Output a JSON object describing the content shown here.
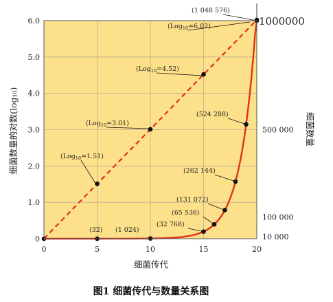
{
  "chart_data": {
    "type": "line",
    "title": "图1 细菌传代与数量关系图",
    "xlabel": "细菌传代",
    "ylabel_left": "细菌数量的对数(log₁₀)",
    "ylabel_right": "细菌数量",
    "xlim": [
      0,
      20
    ],
    "ylim_left": [
      0,
      6
    ],
    "ylim_right": [
      0,
      1000000
    ],
    "x_ticks": [
      "0",
      "5",
      "10",
      "15",
      "20"
    ],
    "y_ticks_left": [
      "0",
      "1.0",
      "2.0",
      "3.0",
      "4.0",
      "5.0",
      "6.0"
    ],
    "y_ticks_right": [
      {
        "value": 10000,
        "label": "10 000"
      },
      {
        "value": 100000,
        "label": "100 000"
      },
      {
        "value": 500000,
        "label": "500 000"
      },
      {
        "value": 1000000,
        "label": "1000000"
      }
    ],
    "grid": true,
    "series": [
      {
        "type": "line",
        "style": "dashed",
        "color": "#e0301e",
        "x": [
          0,
          5,
          10,
          15,
          20
        ],
        "y": [
          0,
          1.51,
          3.01,
          4.52,
          6.02
        ],
        "point_labels": [
          {
            "x": 5,
            "y": 1.51,
            "prefix": "(Log",
            "subscript": "10",
            "suffix": "=1.51)"
          },
          {
            "x": 10,
            "y": 3.01,
            "prefix": "(Log",
            "subscript": "10",
            "suffix": "=3.01)"
          },
          {
            "x": 15,
            "y": 4.52,
            "prefix": "(Log",
            "subscript": "10",
            "suffix": "=4.52)"
          },
          {
            "x": 20,
            "y": 6.02,
            "prefix": "(Log",
            "subscript": "10",
            "suffix": "=6.02)"
          }
        ]
      },
      {
        "type": "line",
        "style": "solid",
        "color": "#e0301e",
        "x": [
          0,
          5,
          10,
          15,
          16,
          17,
          18,
          19,
          20
        ],
        "y": [
          1,
          32,
          1024,
          32768,
          65536,
          131072,
          262144,
          524288,
          1048576
        ],
        "point_labels": [
          {
            "x": 5,
            "y": 32,
            "label": "(32)"
          },
          {
            "x": 10,
            "y": 1024,
            "label": "(1 024)"
          },
          {
            "x": 15,
            "y": 32768,
            "label": "(32 768)"
          },
          {
            "x": 16,
            "y": 65536,
            "label": "(65 536)"
          },
          {
            "x": 17,
            "y": 131072,
            "label": "(131 072)"
          },
          {
            "x": 18,
            "y": 262144,
            "label": "(262 144)"
          },
          {
            "x": 19,
            "y": 524288,
            "label": "(524 288)"
          },
          {
            "x": 20,
            "y": 1048576,
            "label": "(1 048 576)"
          }
        ]
      }
    ],
    "colors": {
      "plot_background": "#fde08a",
      "grid": "#b8ad98",
      "line": "#e0301e"
    }
  }
}
